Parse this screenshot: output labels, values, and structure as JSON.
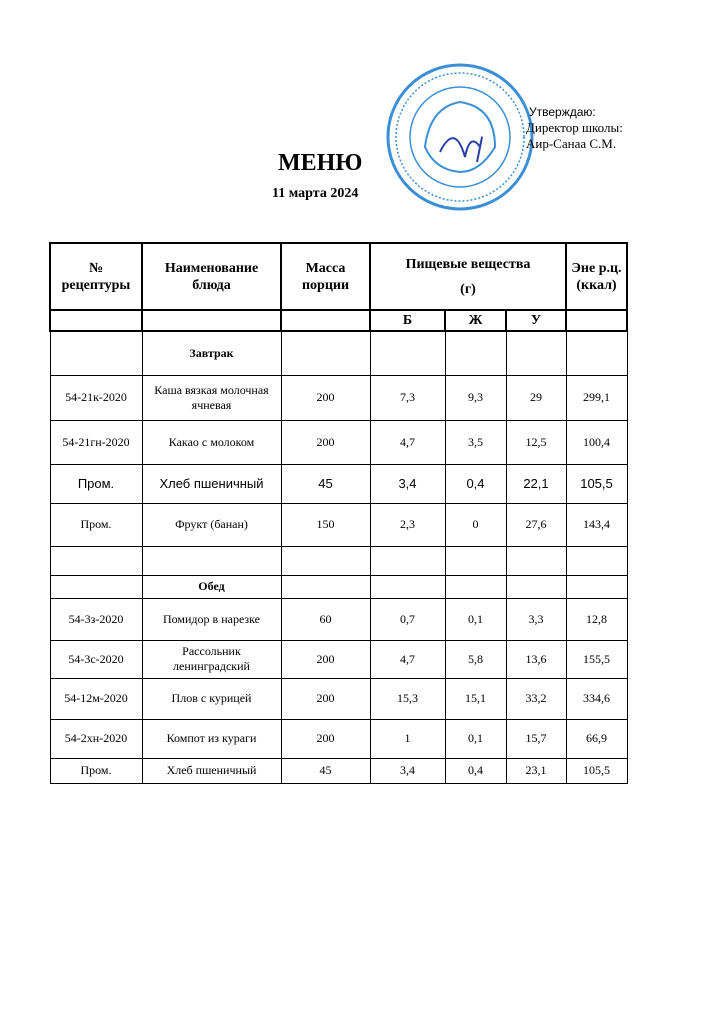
{
  "approval": {
    "line1": "Утверждаю:",
    "line2": "Директор школы:",
    "line3": "Аир-Санаа С.М."
  },
  "stamp_color": "#3a8fd6",
  "title": "МЕНЮ",
  "date": "11  марта 2024",
  "table": {
    "headers": {
      "recipe": "№ рецептуры",
      "name": "Наименование блюда",
      "mass": "Масса порции",
      "nutrients_top": "Пищевые вещества",
      "nutrients_unit": "(г)",
      "energy": "Эне р.ц. (ккал)"
    },
    "subheaders": {
      "b": "Б",
      "zh": "Ж",
      "u": "У"
    },
    "rows": [
      {
        "type": "section",
        "name": "Завтрак"
      },
      {
        "recipe": "54-21к-2020",
        "name": "Каша вязкая молочная ячневая",
        "mass": "200",
        "b": "7,3",
        "zh": "9,3",
        "u": "29",
        "kcal": "299,1"
      },
      {
        "recipe": "54-21гн-2020",
        "name": "Какао с молоком",
        "mass": "200",
        "b": "4,7",
        "zh": "3,5",
        "u": "12,5",
        "kcal": "100,4"
      },
      {
        "recipe": "Пром.",
        "name": "Хлеб пшеничный",
        "mass": "45",
        "b": "3,4",
        "zh": "0,4",
        "u": "22,1",
        "kcal": "105,5",
        "style": "sans"
      },
      {
        "recipe": "Пром.",
        "name": "Фрукт (банан)",
        "mass": "150",
        "b": "2,3",
        "zh": "0",
        "u": "27,6",
        "kcal": "143,4"
      },
      {
        "type": "empty"
      },
      {
        "type": "section",
        "name": "Обед"
      },
      {
        "recipe": "54-3з-2020",
        "name": "Помидор в нарезке",
        "mass": "60",
        "b": "0,7",
        "zh": "0,1",
        "u": "3,3",
        "kcal": "12,8"
      },
      {
        "recipe": "54-3с-2020",
        "name": "Рассольник ленинградский",
        "mass": "200",
        "b": "4,7",
        "zh": "5,8",
        "u": "13,6",
        "kcal": "155,5"
      },
      {
        "recipe": "54-12м-2020",
        "name": "Плов с курицей",
        "mass": "200",
        "b": "15,3",
        "zh": "15,1",
        "u": "33,2",
        "kcal": "334,6"
      },
      {
        "recipe": "54-2хн-2020",
        "name": "Компот из кураги",
        "mass": "200",
        "b": "1",
        "zh": "0,1",
        "u": "15,7",
        "kcal": "66,9"
      },
      {
        "recipe": "Пром.",
        "name": "Хлеб пшеничный",
        "mass": "45",
        "b": "3,4",
        "zh": "0,4",
        "u": "23,1",
        "kcal": "105,5"
      }
    ]
  }
}
